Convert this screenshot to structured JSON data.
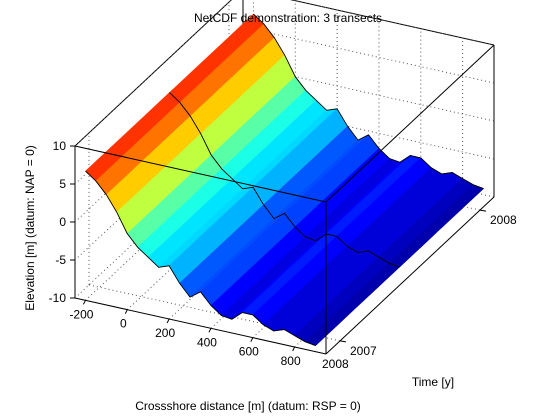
{
  "chart_data": {
    "type": "surface3d",
    "title": "NetCDF demonstration: 3 transects",
    "xlabel": "Crossshore distance [m] (datum: RSP = 0)",
    "ylabel": "Time [y]",
    "zlabel": "Elevation [m] (datum: NAP = 0)",
    "xlim": [
      -250,
      950
    ],
    "ylim": [
      2006.9,
      2008.1
    ],
    "zlim": [
      -10,
      10
    ],
    "x_ticks": [
      "-200",
      "0",
      "200",
      "400",
      "600",
      "800"
    ],
    "y_ticks": [
      "2007",
      "2008"
    ],
    "y_tick_values": [
      2007,
      2008
    ],
    "y_tick_extra_front": "2008",
    "z_ticks": [
      "-10",
      "-5",
      "0",
      "5",
      "10"
    ],
    "grid": true,
    "colormap": "jet",
    "transect_times": [
      2006.9,
      2007.5,
      2008.1
    ],
    "profile_x": [
      -200,
      -150,
      -100,
      -50,
      0,
      50,
      100,
      150,
      200,
      250,
      300,
      350,
      400,
      450,
      500,
      550,
      600,
      650,
      700,
      750,
      800,
      850,
      900
    ],
    "profiles": [
      {
        "time": 2006.9,
        "z": [
          7,
          6,
          4.5,
          2.5,
          0,
          -1.5,
          -2.5,
          -3.5,
          -3,
          -5,
          -6.5,
          -5.5,
          -7,
          -8,
          -8.2,
          -7,
          -7,
          -8,
          -8.5,
          -8,
          -8.5,
          -9,
          -9.2
        ]
      },
      {
        "time": 2007.5,
        "z": [
          7,
          6,
          4.5,
          2.5,
          0,
          -1.5,
          -2.5,
          -3.5,
          -3,
          -5,
          -6.5,
          -5.5,
          -7,
          -8,
          -8.2,
          -7,
          -7,
          -8,
          -8.5,
          -8,
          -8.5,
          -9,
          -9.2
        ]
      },
      {
        "time": 2008.1,
        "z": [
          7,
          6,
          4.5,
          2.5,
          0,
          -1.5,
          -2.5,
          -3.5,
          -3,
          -5,
          -6.5,
          -5.5,
          -7,
          -8,
          -8.2,
          -7,
          -7,
          -8,
          -8.5,
          -8,
          -8.5,
          -9,
          -9.2
        ]
      }
    ]
  }
}
